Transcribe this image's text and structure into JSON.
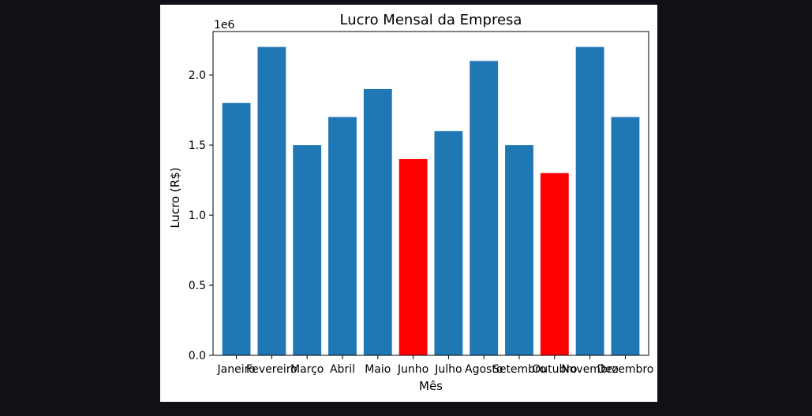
{
  "chart_data": {
    "type": "bar",
    "title": "Lucro Mensal da Empresa",
    "xlabel": "Mês",
    "ylabel": "Lucro (R$)",
    "y_offset_label": "1e6",
    "categories": [
      "Janeiro",
      "Fevereiro",
      "Março",
      "Abril",
      "Maio",
      "Junho",
      "Julho",
      "Agosto",
      "Setembro",
      "Outubro",
      "Novembro",
      "Dezembro"
    ],
    "values": [
      1800000,
      2200000,
      1500000,
      1700000,
      1900000,
      1400000,
      1600000,
      2100000,
      1500000,
      1300000,
      2200000,
      1700000
    ],
    "bar_colors": [
      "#1f77b4",
      "#1f77b4",
      "#1f77b4",
      "#1f77b4",
      "#1f77b4",
      "#ff0000",
      "#1f77b4",
      "#1f77b4",
      "#1f77b4",
      "#ff0000",
      "#1f77b4",
      "#1f77b4"
    ],
    "yticks": [
      "0.0",
      "0.5",
      "1.0",
      "1.5",
      "2.0"
    ],
    "ylim": [
      0,
      2310000
    ],
    "grid": false
  },
  "colors": {
    "page_background": "#0f1117",
    "figure_background": "#ffffff",
    "default_bar": "#1f77b4",
    "highlight_bar": "#ff0000"
  }
}
